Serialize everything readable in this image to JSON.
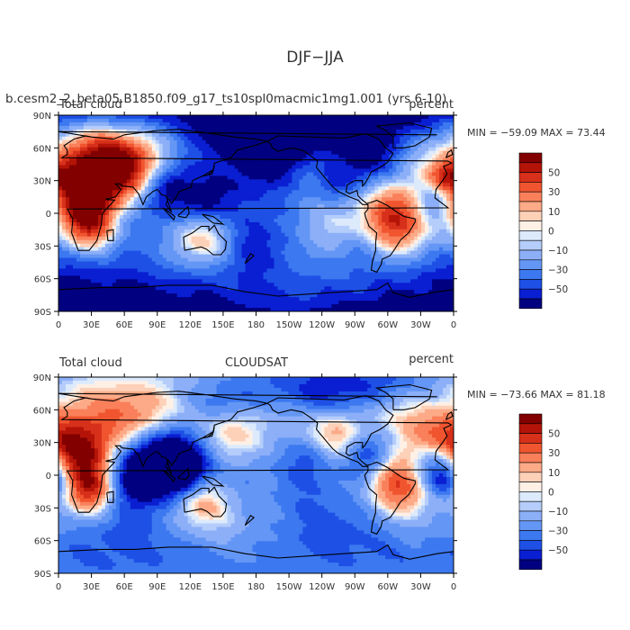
{
  "figure": {
    "title": "DJF−JJA",
    "case_label": "b.cesm2_2_beta05.B1850.f09_g17_ts10spl0macmic1mg1.001 (yrs 6-10)"
  },
  "panels": [
    {
      "left_label": "Total cloud",
      "center_label": "",
      "right_label": "percent",
      "stats": "MIN = −59.09 MAX =  73.44",
      "min": -59.09,
      "max": 73.44
    },
    {
      "left_label": "Total cloud",
      "center_label": "CLOUDSAT",
      "right_label": "percent",
      "stats": "MIN = −73.66 MAX =  81.18",
      "min": -73.66,
      "max": 81.18
    }
  ],
  "axes": {
    "lon_ticks": [
      "0",
      "30E",
      "60E",
      "90E",
      "120E",
      "150E",
      "180",
      "150W",
      "120W",
      "90W",
      "60W",
      "30W",
      "0"
    ],
    "lat_ticks": [
      "90N",
      "60N",
      "30N",
      "0",
      "30S",
      "60S",
      "90S"
    ]
  },
  "colorbar": {
    "levels": [
      -60,
      -50,
      -40,
      -30,
      -20,
      -10,
      -5,
      0,
      5,
      10,
      20,
      30,
      40,
      50,
      60
    ],
    "labels": [
      "50",
      "30",
      "10",
      "0",
      "−10",
      "−30",
      "−50"
    ],
    "colors": [
      "#000080",
      "#0a1ed2",
      "#1e50e6",
      "#3c78f0",
      "#6496f5",
      "#8caff8",
      "#b4cdfa",
      "#dceafc",
      "#fff0e6",
      "#fdd0b8",
      "#fcaa87",
      "#f9805a",
      "#f0552f",
      "#d7301b",
      "#b41408",
      "#820000"
    ]
  },
  "map_data": {
    "projection": "cylindrical-equidistant",
    "lon_range": [
      0,
      360
    ],
    "lat_range": [
      -90,
      90
    ],
    "panel_1_anomalies": [
      [
        25,
        15,
        22,
        70
      ],
      [
        40,
        45,
        30,
        55
      ],
      [
        70,
        40,
        18,
        45
      ],
      [
        30,
        -15,
        16,
        55
      ],
      [
        130,
        -25,
        18,
        40
      ],
      [
        310,
        -10,
        20,
        60
      ],
      [
        235,
        45,
        18,
        40
      ],
      [
        175,
        -5,
        45,
        25
      ],
      [
        250,
        -12,
        25,
        20
      ],
      [
        352,
        35,
        10,
        35
      ],
      [
        45,
        60,
        20,
        25
      ],
      [
        195,
        30,
        25,
        20
      ],
      [
        315,
        60,
        15,
        20
      ],
      [
        300,
        15,
        18,
        20
      ],
      [
        100,
        25,
        18,
        -50
      ],
      [
        130,
        8,
        15,
        -35
      ],
      [
        160,
        20,
        25,
        -35
      ],
      [
        215,
        55,
        22,
        -40
      ],
      [
        250,
        30,
        15,
        -35
      ],
      [
        285,
        45,
        20,
        -40
      ],
      [
        342,
        10,
        12,
        -30
      ],
      [
        180,
        60,
        30,
        -30
      ],
      [
        225,
        -50,
        80,
        -20
      ],
      [
        40,
        -65,
        60,
        -25
      ],
      [
        0,
        -70,
        40,
        -25
      ],
      [
        180,
        -30,
        20,
        -25
      ],
      [
        65,
        0,
        22,
        -25
      ],
      [
        205,
        8,
        30,
        -25
      ],
      [
        270,
        -35,
        14,
        -20
      ],
      [
        80,
        80,
        30,
        -40
      ],
      [
        210,
        80,
        40,
        -40
      ],
      [
        340,
        80,
        25,
        -35
      ],
      [
        160,
        -70,
        60,
        -30
      ],
      [
        290,
        70,
        18,
        -25
      ]
    ],
    "panel_2_anomalies": [
      [
        25,
        15,
        22,
        75
      ],
      [
        10,
        35,
        20,
        40
      ],
      [
        75,
        40,
        18,
        45
      ],
      [
        30,
        -15,
        16,
        60
      ],
      [
        130,
        -25,
        18,
        45
      ],
      [
        310,
        -10,
        20,
        65
      ],
      [
        60,
        65,
        25,
        35
      ],
      [
        145,
        40,
        22,
        35
      ],
      [
        160,
        30,
        22,
        30
      ],
      [
        200,
        35,
        25,
        30
      ],
      [
        260,
        30,
        15,
        35
      ],
      [
        330,
        35,
        20,
        35
      ],
      [
        245,
        45,
        15,
        30
      ],
      [
        195,
        -8,
        30,
        20
      ],
      [
        300,
        60,
        15,
        25
      ],
      [
        85,
        18,
        25,
        -70
      ],
      [
        120,
        12,
        20,
        -45
      ],
      [
        175,
        12,
        25,
        -35
      ],
      [
        280,
        20,
        15,
        -40
      ],
      [
        225,
        18,
        18,
        -30
      ],
      [
        340,
        10,
        15,
        -35
      ],
      [
        350,
        -5,
        10,
        -25
      ],
      [
        0,
        -70,
        360,
        -25
      ],
      [
        60,
        -60,
        30,
        -20
      ],
      [
        260,
        -55,
        30,
        -20
      ],
      [
        215,
        -20,
        25,
        -20
      ],
      [
        150,
        65,
        15,
        -25
      ],
      [
        0,
        0,
        15,
        -25
      ],
      [
        65,
        -2,
        20,
        -30
      ],
      [
        112,
        0,
        14,
        -25
      ],
      [
        180,
        50,
        30,
        -20
      ],
      [
        240,
        70,
        20,
        -25
      ],
      [
        290,
        75,
        20,
        -25
      ]
    ]
  }
}
